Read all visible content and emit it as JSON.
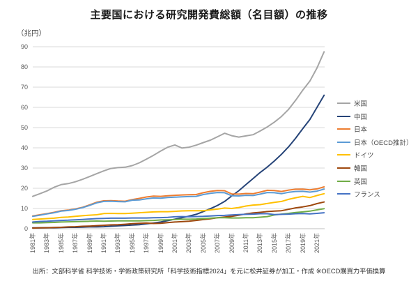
{
  "footer": {
    "source": "出所：文部科学省 科学技術・学術政策研究所「科学技術指標2024」を元に松井証券が加工・作成 ※OECD購買力平価換算"
  },
  "chart_data": {
    "type": "line",
    "title": "主要国における研究開発費総額（名目額）の推移",
    "ylabel": "（兆円）",
    "xlabel": "",
    "ylim": [
      0,
      90
    ],
    "ytick_step": 10,
    "grid": true,
    "legend_position": "right",
    "x": [
      1981,
      1982,
      1983,
      1984,
      1985,
      1986,
      1987,
      1988,
      1989,
      1990,
      1991,
      1992,
      1993,
      1994,
      1995,
      1996,
      1997,
      1998,
      1999,
      2000,
      2001,
      2002,
      2003,
      2004,
      2005,
      2006,
      2007,
      2008,
      2009,
      2010,
      2011,
      2012,
      2013,
      2014,
      2015,
      2016,
      2017,
      2018,
      2019,
      2020,
      2021,
      2022
    ],
    "x_tick_labels": [
      "1981年",
      "1983年",
      "1985年",
      "1987年",
      "1989年",
      "1991年",
      "1993年",
      "1995年",
      "1997年",
      "1999年",
      "2001年",
      "2003年",
      "2005年",
      "2007年",
      "2009年",
      "2011年",
      "2013年",
      "2015年",
      "2017年",
      "2019年",
      "2021年"
    ],
    "series": [
      {
        "key": "us",
        "name": "米国",
        "color": "#A5A5A5",
        "values": [
          16.0,
          17.3,
          18.7,
          20.5,
          21.8,
          22.3,
          23.2,
          24.4,
          25.8,
          27.2,
          28.6,
          29.8,
          30.2,
          30.4,
          31.2,
          32.6,
          34.4,
          36.3,
          38.4,
          40.3,
          41.4,
          39.9,
          40.3,
          41.3,
          42.6,
          43.8,
          45.5,
          47.2,
          46.0,
          45.3,
          45.9,
          46.5,
          48.3,
          50.3,
          52.7,
          55.5,
          59.0,
          63.5,
          68.5,
          73.0,
          79.5,
          87.5
        ]
      },
      {
        "key": "china",
        "name": "中国",
        "color": "#264478",
        "values": [
          0.4,
          0.4,
          0.5,
          0.5,
          0.6,
          0.7,
          0.7,
          0.8,
          0.9,
          0.9,
          1.0,
          1.2,
          1.4,
          1.6,
          1.8,
          2.0,
          2.4,
          2.8,
          3.3,
          4.0,
          4.7,
          5.4,
          6.2,
          7.1,
          8.5,
          9.9,
          11.5,
          13.5,
          16.2,
          18.8,
          21.8,
          24.8,
          27.8,
          30.5,
          33.5,
          36.8,
          40.5,
          44.8,
          49.5,
          54.0,
          60.0,
          66.0
        ]
      },
      {
        "key": "japan",
        "name": "日本",
        "color": "#ED7D31",
        "values": [
          6.3,
          6.9,
          7.5,
          8.1,
          8.9,
          9.2,
          9.8,
          10.6,
          11.8,
          13.1,
          13.8,
          13.9,
          13.7,
          13.6,
          14.4,
          15.0,
          15.7,
          16.1,
          16.0,
          16.3,
          16.5,
          16.7,
          16.8,
          16.9,
          17.8,
          18.5,
          18.9,
          18.8,
          17.2,
          17.1,
          17.4,
          17.3,
          18.1,
          19.0,
          18.9,
          18.4,
          19.1,
          19.5,
          19.6,
          19.2,
          19.7,
          20.7
        ]
      },
      {
        "key": "japan-oecd",
        "name": "日本（OECD推計）",
        "color": "#5B9BD5",
        "values": [
          6.1,
          6.7,
          7.3,
          7.9,
          8.7,
          9.0,
          9.6,
          10.4,
          11.5,
          12.8,
          13.5,
          13.6,
          13.4,
          13.3,
          14.1,
          14.2,
          14.8,
          15.2,
          15.1,
          15.4,
          15.6,
          15.8,
          15.9,
          16.0,
          16.9,
          17.5,
          17.9,
          17.8,
          16.3,
          16.2,
          16.5,
          16.4,
          17.1,
          17.9,
          17.8,
          17.3,
          18.0,
          18.4,
          18.5,
          18.1,
          18.6,
          19.6
        ]
      },
      {
        "key": "germany",
        "name": "ドイツ",
        "color": "#FFC000",
        "values": [
          4.6,
          4.8,
          5.0,
          5.2,
          5.6,
          5.8,
          6.1,
          6.4,
          6.7,
          6.9,
          7.5,
          7.6,
          7.5,
          7.5,
          7.7,
          7.9,
          8.1,
          8.3,
          8.4,
          8.4,
          8.6,
          8.8,
          8.9,
          8.9,
          8.9,
          9.3,
          9.7,
          10.2,
          10.0,
          10.5,
          11.2,
          11.7,
          11.9,
          12.5,
          13.0,
          13.5,
          14.5,
          15.3,
          16.0,
          15.4,
          16.4,
          17.3
        ]
      },
      {
        "key": "korea",
        "name": "韓国",
        "color": "#9E480E",
        "values": [
          0.3,
          0.4,
          0.5,
          0.6,
          0.7,
          0.9,
          1.0,
          1.2,
          1.3,
          1.5,
          1.7,
          1.9,
          2.0,
          2.2,
          2.5,
          2.7,
          2.8,
          2.6,
          2.7,
          3.0,
          3.3,
          3.5,
          3.7,
          4.1,
          4.5,
          4.9,
          5.4,
          5.8,
          6.1,
          6.7,
          7.3,
          7.8,
          8.1,
          8.5,
          8.7,
          8.9,
          9.6,
          10.3,
          10.8,
          11.4,
          12.4,
          13.2
        ]
      },
      {
        "key": "uk",
        "name": "英国",
        "color": "#70AD47",
        "values": [
          2.9,
          2.9,
          3.0,
          3.1,
          3.3,
          3.4,
          3.5,
          3.6,
          3.7,
          3.8,
          3.7,
          3.8,
          3.9,
          3.9,
          3.9,
          3.9,
          4.0,
          4.1,
          4.3,
          4.4,
          4.5,
          4.7,
          4.7,
          4.8,
          5.0,
          5.2,
          5.4,
          5.4,
          5.3,
          5.3,
          5.4,
          5.4,
          5.7,
          6.0,
          6.8,
          7.2,
          7.6,
          8.0,
          8.3,
          8.7,
          9.3,
          9.9
        ]
      },
      {
        "key": "france",
        "name": "フランス",
        "color": "#4472C4",
        "values": [
          3.3,
          3.6,
          3.7,
          3.9,
          4.1,
          4.2,
          4.4,
          4.6,
          4.8,
          5.0,
          5.1,
          5.2,
          5.2,
          5.2,
          5.3,
          5.3,
          5.3,
          5.4,
          5.5,
          5.6,
          5.9,
          6.0,
          5.9,
          6.0,
          6.1,
          6.3,
          6.5,
          6.6,
          6.8,
          7.0,
          7.1,
          7.2,
          7.4,
          7.4,
          7.0,
          7.1,
          7.2,
          7.4,
          7.5,
          7.3,
          7.6,
          7.9
        ]
      }
    ]
  }
}
